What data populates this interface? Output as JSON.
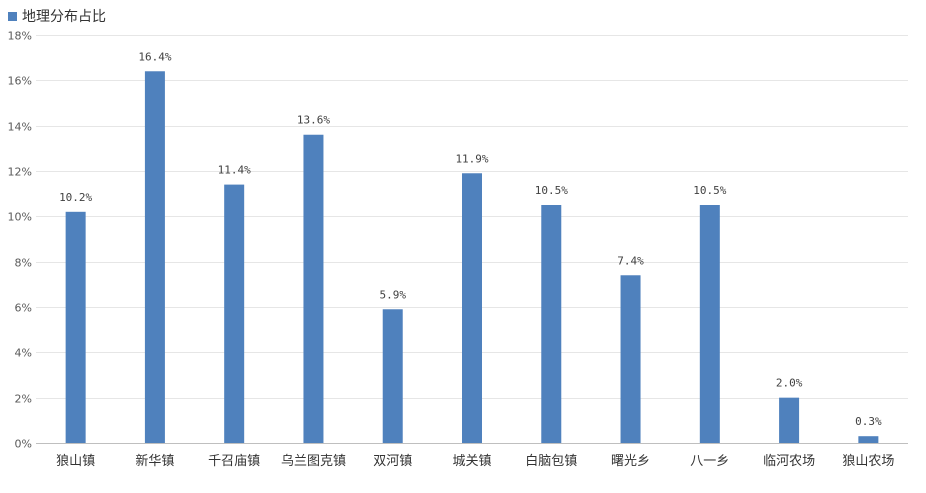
{
  "chart_data": {
    "type": "bar",
    "title": "",
    "xlabel": "",
    "ylabel": "",
    "ylim": [
      0,
      18
    ],
    "ytick_step": 2,
    "ytick_suffix": "%",
    "grid": true,
    "legend_position": "top-left",
    "categories": [
      "狼山镇",
      "新华镇",
      "千召庙镇",
      "乌兰图克镇",
      "双河镇",
      "城关镇",
      "白脑包镇",
      "曙光乡",
      "八一乡",
      "临河农场",
      "狼山农场"
    ],
    "series": [
      {
        "name": "地理分布占比",
        "color": "#4F81BD",
        "values": [
          10.2,
          16.4,
          11.4,
          13.6,
          5.9,
          11.9,
          10.5,
          7.4,
          10.5,
          2.0,
          0.3
        ],
        "labels": [
          "10.2%",
          "16.4%",
          "11.4%",
          "13.6%",
          "5.9%",
          "11.9%",
          "10.5%",
          "7.4%",
          "10.5%",
          "2.0%",
          "0.3%"
        ]
      }
    ]
  }
}
